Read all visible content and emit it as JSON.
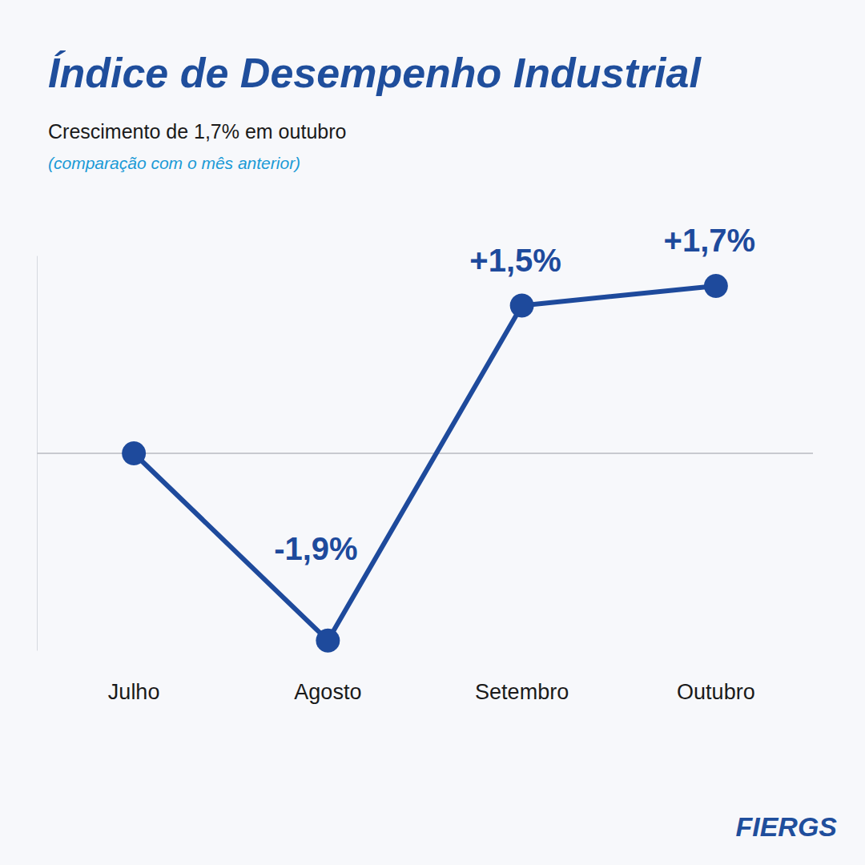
{
  "chart_data": {
    "type": "line",
    "title": "Índice de Desempenho Industrial",
    "subtitle": "Crescimento de 1,7% em outubro",
    "note": "(comparação com o mês anterior)",
    "logo": "FIERGS",
    "categories": [
      "Julho",
      "Agosto",
      "Setembro",
      "Outubro"
    ],
    "values": [
      0,
      -1.9,
      1.5,
      1.7
    ],
    "value_labels": [
      null,
      "-1,9%",
      "+1,5%",
      "+1,7%"
    ],
    "color": "#1e4a9c",
    "marker": "circle",
    "line_style": "solid",
    "ylim": [
      -2,
      2
    ],
    "yticks": [
      0
    ],
    "grid": true,
    "data_labels": true,
    "tick_labels": "x"
  }
}
